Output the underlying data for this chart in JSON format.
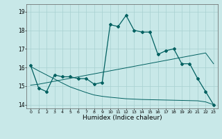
{
  "xlabel": "Humidex (Indice chaleur)",
  "bg_color": "#c8e8e8",
  "grid_color": "#a8d0d0",
  "line_color": "#006060",
  "x_values": [
    0,
    1,
    2,
    3,
    4,
    5,
    6,
    7,
    8,
    9,
    10,
    11,
    12,
    13,
    14,
    15,
    16,
    17,
    18,
    19,
    20,
    21,
    22,
    23
  ],
  "main_line": [
    16.1,
    14.9,
    14.7,
    15.6,
    15.5,
    15.5,
    15.4,
    15.4,
    15.1,
    15.2,
    18.3,
    18.2,
    18.8,
    18.0,
    17.9,
    17.9,
    16.7,
    16.9,
    17.0,
    16.2,
    16.2,
    15.4,
    14.7,
    14.0
  ],
  "trend_up": [
    15.05,
    15.1,
    15.18,
    15.26,
    15.34,
    15.42,
    15.5,
    15.58,
    15.66,
    15.74,
    15.82,
    15.9,
    15.98,
    16.06,
    16.14,
    16.22,
    16.3,
    16.38,
    16.46,
    16.54,
    16.62,
    16.7,
    16.78,
    16.2
  ],
  "trend_down": [
    16.05,
    15.82,
    15.6,
    15.38,
    15.16,
    14.95,
    14.8,
    14.65,
    14.52,
    14.45,
    14.4,
    14.36,
    14.32,
    14.3,
    14.28,
    14.27,
    14.26,
    14.25,
    14.24,
    14.23,
    14.22,
    14.21,
    14.15,
    14.0
  ],
  "ylim": [
    13.8,
    19.4
  ],
  "yticks": [
    14,
    15,
    16,
    17,
    18,
    19
  ],
  "xlim": [
    -0.5,
    23.5
  ]
}
